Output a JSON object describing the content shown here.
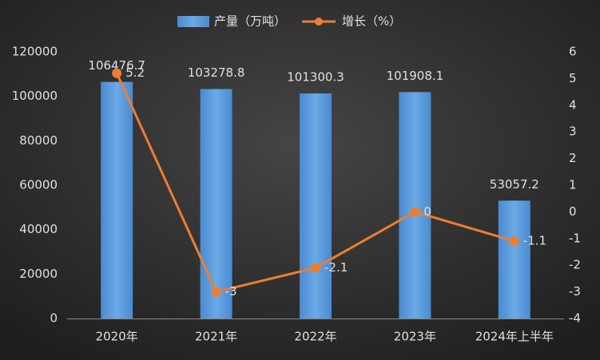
{
  "chart_data": {
    "type": "bar",
    "categories": [
      "2020年",
      "2021年",
      "2022年",
      "2023年",
      "2024年上半年"
    ],
    "series": [
      {
        "name": "产量（万吨）",
        "color": "#5b9bd5",
        "values": [
          106476.7,
          103278.8,
          101300.3,
          101908.1,
          53057.2
        ]
      },
      {
        "name": "增长（%）",
        "color": "#ed7d31",
        "axis": "y2",
        "values": [
          5.2,
          -3,
          -2.1,
          0,
          -1.1
        ]
      }
    ],
    "ylim": [
      0,
      120000
    ],
    "yticks": [
      0,
      20000,
      40000,
      60000,
      80000,
      100000,
      120000
    ],
    "y2lim": [
      -4,
      6
    ],
    "y2ticks": [
      -4,
      -3,
      -2,
      -1,
      0,
      1,
      2,
      3,
      4,
      5,
      6
    ],
    "grid": false,
    "legend": "top"
  }
}
